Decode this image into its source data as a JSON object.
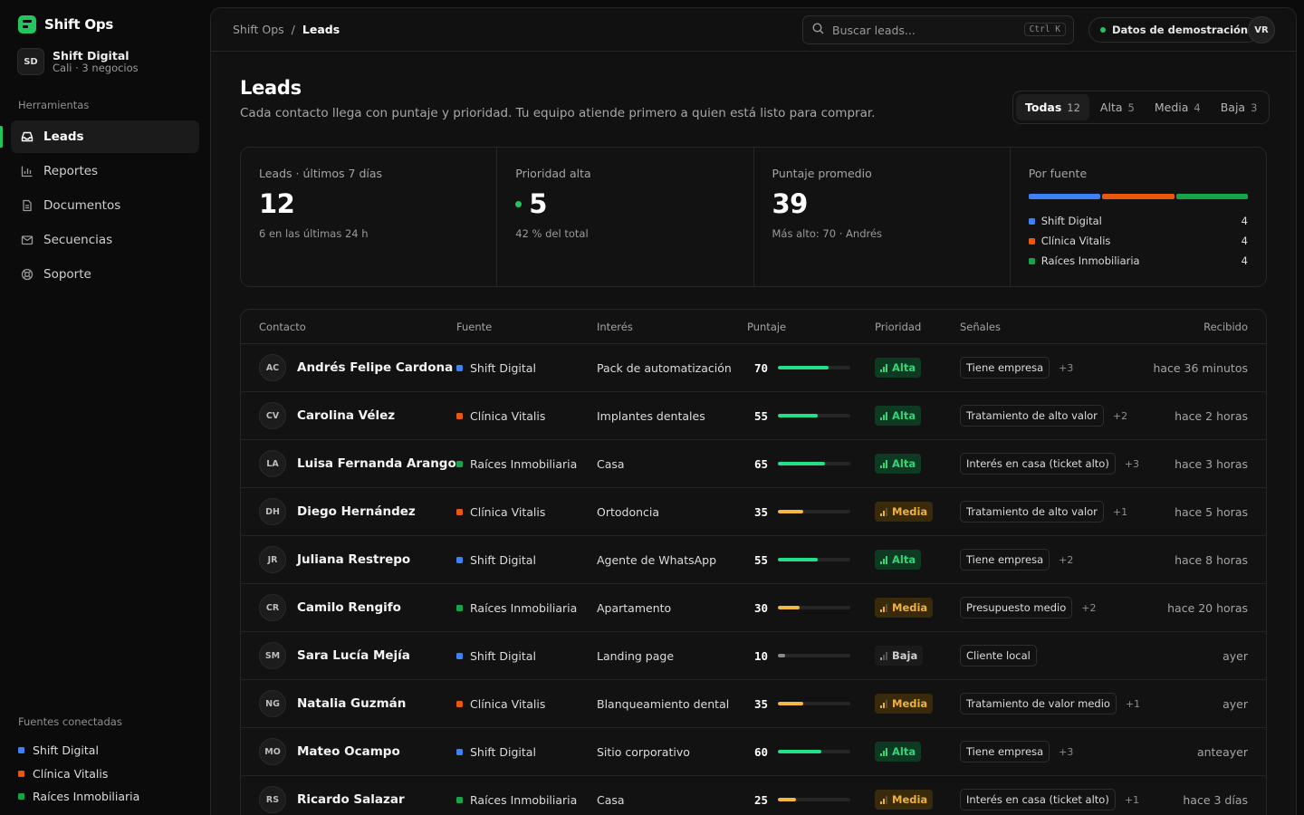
{
  "app": {
    "name": "Shift Ops"
  },
  "org": {
    "initials": "SD",
    "name": "Shift Digital",
    "sub": "Cali · 3 negocios"
  },
  "sidebar": {
    "section_label": "Herramientas",
    "items": [
      {
        "label": "Leads",
        "icon": "inbox-icon",
        "active": true
      },
      {
        "label": "Reportes",
        "icon": "bar-chart-icon"
      },
      {
        "label": "Documentos",
        "icon": "document-icon"
      },
      {
        "label": "Secuencias",
        "icon": "mail-icon"
      },
      {
        "label": "Soporte",
        "icon": "lifebuoy-icon"
      }
    ],
    "sources_label": "Fuentes conectadas",
    "sources": [
      {
        "label": "Shift Digital",
        "color": "#3b82f6"
      },
      {
        "label": "Clínica Vitalis",
        "color": "#ea580c"
      },
      {
        "label": "Raíces Inmobiliaria",
        "color": "#16a34a"
      }
    ]
  },
  "topbar": {
    "crumb_root": "Shift Ops",
    "crumb_sep": "/",
    "crumb_current": "Leads",
    "search_placeholder": "Buscar leads...",
    "search_shortcut": "Ctrl K",
    "demo_label": "Datos de demostración",
    "user_initials": "VR"
  },
  "page": {
    "title": "Leads",
    "subtitle": "Cada contacto llega con puntaje y prioridad. Tu equipo atiende primero a quien está listo para comprar.",
    "filters": [
      {
        "label": "Todas",
        "count": "12",
        "active": true
      },
      {
        "label": "Alta",
        "count": "5"
      },
      {
        "label": "Media",
        "count": "4"
      },
      {
        "label": "Baja",
        "count": "3"
      }
    ]
  },
  "stats": {
    "leads": {
      "label": "Leads · últimos 7 días",
      "value": "12",
      "note": "6 en las últimas 24 h"
    },
    "high": {
      "label": "Prioridad alta",
      "value": "5",
      "note": "42 % del total"
    },
    "avg": {
      "label": "Puntaje promedio",
      "value": "39",
      "note": "Más alto: 70 · Andrés"
    },
    "by_source": {
      "label": "Por fuente",
      "items": [
        {
          "label": "Shift Digital",
          "count": "4",
          "color": "#3b82f6"
        },
        {
          "label": "Clínica Vitalis",
          "count": "4",
          "color": "#ea580c"
        },
        {
          "label": "Raíces Inmobiliaria",
          "count": "4",
          "color": "#16a34a"
        }
      ]
    }
  },
  "table": {
    "headers": {
      "contact": "Contacto",
      "source": "Fuente",
      "interest": "Interés",
      "score": "Puntaje",
      "priority": "Prioridad",
      "signals": "Señales",
      "received": "Recibido"
    },
    "rows": [
      {
        "initials": "AC",
        "name": "Andrés Felipe Cardona",
        "source": "Shift Digital",
        "source_color": "#3b82f6",
        "interest": "Pack de automatización",
        "score": "70",
        "score_fraction": 0.7,
        "priority": "Alta",
        "signal": "Tiene empresa",
        "extra": "+3",
        "received": "hace 36 minutos"
      },
      {
        "initials": "CV",
        "name": "Carolina Vélez",
        "source": "Clínica Vitalis",
        "source_color": "#ea580c",
        "interest": "Implantes dentales",
        "score": "55",
        "score_fraction": 0.55,
        "priority": "Alta",
        "signal": "Tratamiento de alto valor",
        "extra": "+2",
        "received": "hace 2 horas"
      },
      {
        "initials": "LA",
        "name": "Luisa Fernanda Arango",
        "source": "Raíces Inmobiliaria",
        "source_color": "#16a34a",
        "interest": "Casa",
        "score": "65",
        "score_fraction": 0.65,
        "priority": "Alta",
        "signal": "Interés en casa (ticket alto)",
        "extra": "+3",
        "received": "hace 3 horas"
      },
      {
        "initials": "DH",
        "name": "Diego Hernández",
        "source": "Clínica Vitalis",
        "source_color": "#ea580c",
        "interest": "Ortodoncia",
        "score": "35",
        "score_fraction": 0.35,
        "priority": "Media",
        "signal": "Tratamiento de alto valor",
        "extra": "+1",
        "received": "hace 5 horas"
      },
      {
        "initials": "JR",
        "name": "Juliana Restrepo",
        "source": "Shift Digital",
        "source_color": "#3b82f6",
        "interest": "Agente de WhatsApp",
        "score": "55",
        "score_fraction": 0.55,
        "priority": "Alta",
        "signal": "Tiene empresa",
        "extra": "+2",
        "received": "hace 8 horas"
      },
      {
        "initials": "CR",
        "name": "Camilo Rengifo",
        "source": "Raíces Inmobiliaria",
        "source_color": "#16a34a",
        "interest": "Apartamento",
        "score": "30",
        "score_fraction": 0.3,
        "priority": "Media",
        "signal": "Presupuesto medio",
        "extra": "+2",
        "received": "hace 20 horas"
      },
      {
        "initials": "SM",
        "name": "Sara Lucía Mejía",
        "source": "Shift Digital",
        "source_color": "#3b82f6",
        "interest": "Landing page",
        "score": "10",
        "score_fraction": 0.1,
        "priority": "Baja",
        "signal": "Cliente local",
        "extra": "",
        "received": "ayer"
      },
      {
        "initials": "NG",
        "name": "Natalia Guzmán",
        "source": "Clínica Vitalis",
        "source_color": "#ea580c",
        "interest": "Blanqueamiento dental",
        "score": "35",
        "score_fraction": 0.35,
        "priority": "Media",
        "signal": "Tratamiento de valor medio",
        "extra": "+1",
        "received": "ayer"
      },
      {
        "initials": "MO",
        "name": "Mateo Ocampo",
        "source": "Shift Digital",
        "source_color": "#3b82f6",
        "interest": "Sitio corporativo",
        "score": "60",
        "score_fraction": 0.6,
        "priority": "Alta",
        "signal": "Tiene empresa",
        "extra": "+3",
        "received": "anteayer"
      },
      {
        "initials": "RS",
        "name": "Ricardo Salazar",
        "source": "Raíces Inmobiliaria",
        "source_color": "#16a34a",
        "interest": "Casa",
        "score": "25",
        "score_fraction": 0.25,
        "priority": "Media",
        "signal": "Interés en casa (ticket alto)",
        "extra": "+1",
        "received": "hace 3 días"
      }
    ]
  },
  "colors": {
    "accent": "#22c55e",
    "alta": "#34d37a",
    "media": "#f0b13a",
    "baja": "#9a9a9a"
  }
}
